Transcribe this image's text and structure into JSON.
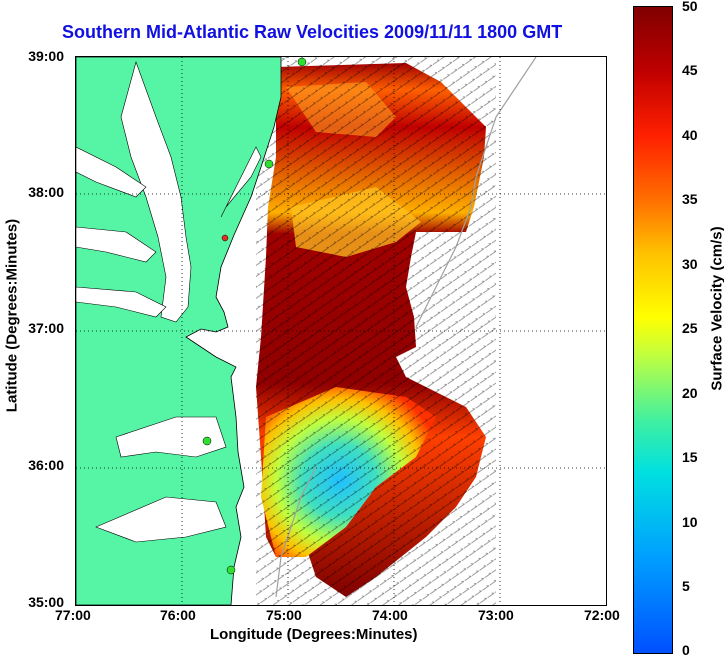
{
  "title": "Southern Mid-Atlantic Raw Velocities 2009/11/11 1800 GMT",
  "axes": {
    "x_label": "Longitude (Degrees:Minutes)",
    "y_label": "Latitude (Degrees:Minutes)",
    "x_ticks": [
      "77:00",
      "76:00",
      "75:00",
      "74:00",
      "73:00",
      "72:00"
    ],
    "y_ticks": [
      "39:00",
      "38:00",
      "37:00",
      "36:00",
      "35:00"
    ],
    "x_range": [
      -77,
      -72
    ],
    "y_range": [
      35,
      39
    ],
    "grid": "dotted"
  },
  "colorbar": {
    "label": "Surface Velocity (cm/s)",
    "ticks": [
      "50",
      "45",
      "40",
      "35",
      "30",
      "25",
      "20",
      "15",
      "10",
      "5",
      "0"
    ],
    "range": [
      0,
      50
    ]
  },
  "colors": {
    "land": "#55f5a5",
    "title": "#1010e0",
    "coastline": "#000000",
    "station_green": "#30e030",
    "station_red": "#e03020",
    "bathymetry": "#a0a0a0"
  }
}
